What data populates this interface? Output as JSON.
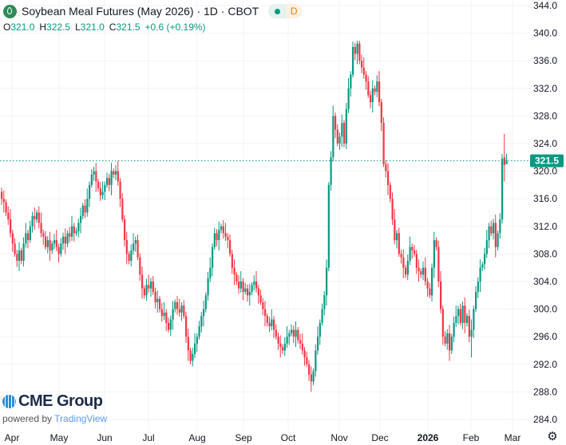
{
  "header": {
    "title": "Soybean Meal Futures (May 2026) · 1D · CBOT",
    "badge_letter": "D",
    "ohlc": {
      "o_label": "O",
      "o": "321.0",
      "h_label": "H",
      "h": "322.5",
      "l_label": "L",
      "l": "321.0",
      "c_label": "C",
      "c": "321.5",
      "change": "+0.6 (+0.19%)"
    }
  },
  "branding": {
    "logo_text": "CME Group",
    "powered_by": "powered by",
    "provider": "TradingView"
  },
  "icons": {
    "symbol": "soybean-leaf-icon",
    "status": "market-open-dot-icon",
    "settings": "gear-icon"
  },
  "colors": {
    "up": "#089981",
    "down": "#f23645",
    "last_price": "#089981",
    "grid": "#f0f3fa"
  },
  "chart_data": {
    "type": "candlestick",
    "title": "Soybean Meal Futures (May 2026) · 1D · CBOT",
    "last_price": "321.5",
    "y_ticks": [
      "344.0",
      "340.0",
      "336.0",
      "332.0",
      "328.0",
      "324.0",
      "320.0",
      "316.0",
      "312.0",
      "308.0",
      "304.0",
      "300.0",
      "296.0",
      "292.0",
      "288.0",
      "284.0"
    ],
    "ylim": [
      284,
      344
    ],
    "x_ticks": [
      "Apr",
      "May",
      "Jun",
      "Jul",
      "Aug",
      "Sep",
      "Oct",
      "Nov",
      "Dec",
      "2026",
      "Feb",
      "Mar"
    ],
    "grid": true,
    "ohlc": [
      [
        317,
        317.6,
        315.1,
        316
      ],
      [
        316,
        317.2,
        314,
        315.5
      ],
      [
        315.5,
        315.9,
        313.5,
        314
      ],
      [
        314,
        314.9,
        312.2,
        313
      ],
      [
        313,
        314.5,
        310.4,
        311
      ],
      [
        311,
        311.5,
        308.3,
        309.5
      ],
      [
        309.5,
        310.3,
        307.6,
        308
      ],
      [
        308,
        308.6,
        306.1,
        307
      ],
      [
        307,
        309.7,
        305.5,
        308.5
      ],
      [
        308.5,
        308.9,
        306.5,
        307
      ],
      [
        307,
        310.4,
        306.2,
        309.5
      ],
      [
        309.5,
        312.5,
        308.9,
        311
      ],
      [
        311,
        311.5,
        308.8,
        310
      ],
      [
        310,
        312.8,
        309.6,
        312
      ],
      [
        312,
        314.1,
        311.1,
        313.5
      ],
      [
        313.5,
        314.7,
        311.5,
        313
      ],
      [
        313,
        314.4,
        312.5,
        314
      ],
      [
        314,
        314.9,
        311.7,
        312.5
      ],
      [
        312.5,
        314,
        310.4,
        311
      ],
      [
        311,
        311.5,
        309.3,
        310.5
      ],
      [
        310.5,
        311.3,
        308.6,
        309
      ],
      [
        309,
        310.6,
        308.1,
        310
      ],
      [
        310,
        311.2,
        307,
        308.5
      ],
      [
        308.5,
        309.9,
        308,
        309.5
      ],
      [
        309.5,
        310.9,
        308.7,
        310
      ],
      [
        310,
        311.5,
        308.4,
        309
      ],
      [
        309,
        309.5,
        306.8,
        308
      ],
      [
        308,
        310.3,
        307.6,
        309.5
      ],
      [
        309.5,
        311.1,
        308.6,
        310.5
      ],
      [
        310.5,
        311.7,
        308,
        309.5
      ],
      [
        309.5,
        311.4,
        309,
        311
      ],
      [
        311,
        311.9,
        309.7,
        310.5
      ],
      [
        310.5,
        313.5,
        309.9,
        312
      ],
      [
        312,
        312.5,
        309.8,
        311
      ],
      [
        311,
        311.8,
        310.6,
        311.3
      ],
      [
        311.3,
        313.1,
        310.4,
        312.5
      ],
      [
        312.5,
        314.7,
        311,
        313.5
      ],
      [
        313.5,
        315.4,
        313,
        315
      ],
      [
        315,
        315.9,
        313.2,
        314
      ],
      [
        314,
        317.5,
        313.4,
        316
      ],
      [
        316,
        318.5,
        314.8,
        318
      ],
      [
        318,
        320.3,
        317.6,
        319.5
      ],
      [
        319.5,
        320.6,
        318.6,
        320
      ],
      [
        320,
        321.2,
        317,
        318.5
      ],
      [
        318.5,
        318.9,
        317,
        317.5
      ],
      [
        317.5,
        318.4,
        315.7,
        316.5
      ],
      [
        316.5,
        318.5,
        315.9,
        317
      ],
      [
        317,
        318.5,
        315.8,
        318
      ],
      [
        318,
        319.8,
        317.6,
        319
      ],
      [
        319,
        319.6,
        317.1,
        318
      ],
      [
        318,
        321.2,
        316.5,
        320
      ],
      [
        320,
        320.4,
        319,
        319.5
      ],
      [
        319.5,
        320.9,
        318.7,
        320
      ],
      [
        320,
        321.5,
        317.9,
        318.5
      ],
      [
        318.5,
        319,
        314.8,
        316
      ],
      [
        316,
        316.8,
        312.6,
        313
      ],
      [
        313,
        313.6,
        309.1,
        310
      ],
      [
        310,
        311.2,
        306.5,
        308
      ],
      [
        308,
        308.4,
        306.5,
        307
      ],
      [
        307,
        309.4,
        306.2,
        308.5
      ],
      [
        308.5,
        311,
        307.9,
        309.5
      ],
      [
        309.5,
        310.5,
        308.3,
        310
      ],
      [
        310,
        310.8,
        307.1,
        307.5
      ],
      [
        307.5,
        308.1,
        304.1,
        305
      ],
      [
        305,
        306.2,
        301.5,
        303
      ],
      [
        303,
        303.4,
        301.5,
        302
      ],
      [
        302,
        304.4,
        301.2,
        303.5
      ],
      [
        303.5,
        305,
        302.4,
        303
      ],
      [
        303,
        304.5,
        301.8,
        304
      ],
      [
        304,
        304.8,
        302.1,
        302.5
      ],
      [
        302.5,
        303.1,
        300.1,
        301
      ],
      [
        301,
        302.7,
        299.5,
        301.5
      ],
      [
        301.5,
        301.9,
        299.5,
        300
      ],
      [
        300,
        300.9,
        298.2,
        299
      ],
      [
        299,
        301,
        298.4,
        299.5
      ],
      [
        299.5,
        300,
        296.8,
        298
      ],
      [
        298,
        298.8,
        296.6,
        297
      ],
      [
        297,
        299.1,
        296.1,
        298.5
      ],
      [
        298.5,
        301.2,
        297,
        300
      ],
      [
        300,
        301.4,
        299.5,
        301
      ],
      [
        301,
        301.9,
        299.2,
        300
      ],
      [
        300,
        301.5,
        298.9,
        299.5
      ],
      [
        299.5,
        301,
        298.3,
        300.5
      ],
      [
        300.5,
        301.3,
        298.6,
        299
      ],
      [
        299,
        299.6,
        295.1,
        296
      ],
      [
        296,
        297.2,
        292.5,
        294
      ],
      [
        294,
        294.4,
        292,
        292.5
      ],
      [
        292.5,
        294.4,
        291.7,
        293.5
      ],
      [
        293.5,
        296.5,
        292.9,
        295
      ],
      [
        295,
        296.5,
        293.8,
        296
      ],
      [
        296,
        298.3,
        295.6,
        297.5
      ],
      [
        297.5,
        299.6,
        296.6,
        299
      ],
      [
        299,
        301.2,
        297.5,
        300
      ],
      [
        300,
        302.4,
        299.5,
        302
      ],
      [
        302,
        305.4,
        301.2,
        304.5
      ],
      [
        304.5,
        307.5,
        303.9,
        306
      ],
      [
        306,
        309.5,
        304.8,
        309
      ],
      [
        309,
        311.8,
        308.6,
        311
      ],
      [
        311,
        311.6,
        309.1,
        310
      ],
      [
        310,
        312.7,
        308.5,
        311.5
      ],
      [
        311.5,
        312.4,
        311,
        312
      ],
      [
        312,
        312.9,
        310.2,
        311
      ],
      [
        311,
        312.5,
        309.9,
        310.5
      ],
      [
        310.5,
        311,
        308.8,
        310
      ],
      [
        310,
        310.8,
        307.6,
        308
      ],
      [
        308,
        308.6,
        305.1,
        306
      ],
      [
        306,
        307.2,
        303.5,
        305
      ],
      [
        305,
        305.4,
        303.5,
        304
      ],
      [
        304,
        304.9,
        302.2,
        303
      ],
      [
        303,
        305.5,
        302.4,
        304
      ],
      [
        304,
        304.5,
        301.3,
        302.5
      ],
      [
        302.5,
        303.8,
        302.1,
        303
      ],
      [
        303,
        303.6,
        301.1,
        302
      ],
      [
        302,
        303.7,
        300.5,
        302.5
      ],
      [
        302.5,
        303.9,
        302,
        303.5
      ],
      [
        303.5,
        304.9,
        302.7,
        304
      ],
      [
        304,
        305.5,
        302.4,
        303
      ],
      [
        303,
        303.5,
        300.8,
        302
      ],
      [
        302,
        302.8,
        300.6,
        301
      ],
      [
        301,
        301.6,
        299.1,
        300
      ],
      [
        300,
        301.2,
        297.5,
        299
      ],
      [
        299,
        299.4,
        297.5,
        298
      ],
      [
        298,
        298.9,
        296.7,
        297.5
      ],
      [
        297.5,
        300,
        296.9,
        298.5
      ],
      [
        298.5,
        299,
        295.8,
        297
      ],
      [
        297,
        297.8,
        295.6,
        296
      ],
      [
        296,
        296.6,
        294.1,
        295
      ],
      [
        295,
        296.2,
        293,
        294.5
      ],
      [
        294.5,
        294.9,
        293.5,
        294
      ],
      [
        294,
        295.9,
        293.2,
        295
      ],
      [
        295,
        297.5,
        294.4,
        296
      ],
      [
        296,
        297,
        294.8,
        296.5
      ],
      [
        296.5,
        297.8,
        296.1,
        297
      ],
      [
        297,
        297.6,
        295.1,
        296
      ],
      [
        296,
        298.2,
        294.5,
        297
      ],
      [
        297,
        297.4,
        295,
        295.5
      ],
      [
        295.5,
        296.4,
        294.2,
        295
      ],
      [
        295,
        296.5,
        293.4,
        294
      ],
      [
        294,
        294.5,
        291.8,
        293
      ],
      [
        293,
        293.8,
        291.6,
        292
      ],
      [
        292,
        292.6,
        289.6,
        290.5
      ],
      [
        290.5,
        291.7,
        288,
        289.5
      ],
      [
        289.5,
        291.4,
        289,
        291
      ],
      [
        291,
        294.9,
        290.2,
        294
      ],
      [
        294,
        297.5,
        293.4,
        296
      ],
      [
        296,
        298.5,
        294.8,
        298
      ],
      [
        298,
        300.8,
        297.6,
        300
      ],
      [
        300,
        302.6,
        299.1,
        302
      ],
      [
        302,
        307.2,
        300.5,
        306
      ],
      [
        306,
        318.4,
        305.5,
        318
      ],
      [
        318,
        322.9,
        317.2,
        322
      ],
      [
        322,
        329.5,
        321.4,
        328
      ],
      [
        328,
        328.5,
        324.8,
        326
      ],
      [
        326,
        326.8,
        323.6,
        324
      ],
      [
        324,
        325.6,
        323.1,
        325
      ],
      [
        325,
        328.2,
        323.5,
        327
      ],
      [
        327,
        327.4,
        323.5,
        324
      ],
      [
        324,
        329.9,
        323.2,
        329
      ],
      [
        329,
        333.5,
        328.4,
        332
      ],
      [
        332,
        334.5,
        330.8,
        334
      ],
      [
        334,
        338.8,
        333.6,
        338
      ],
      [
        338,
        338.6,
        336.1,
        337
      ],
      [
        337,
        338.9,
        335.5,
        338.5
      ],
      [
        338.5,
        338.9,
        335.5,
        336
      ],
      [
        336,
        336.9,
        334.2,
        335
      ],
      [
        335,
        336.5,
        333.4,
        334
      ],
      [
        334,
        334.5,
        331.8,
        333
      ],
      [
        333,
        333.8,
        330.6,
        331
      ],
      [
        331,
        331.6,
        329.1,
        330
      ],
      [
        330,
        333.2,
        328.5,
        332
      ],
      [
        332,
        332.4,
        331,
        331.5
      ],
      [
        331.5,
        333.9,
        330.7,
        333
      ],
      [
        333,
        334.5,
        329.4,
        330
      ],
      [
        330,
        330.5,
        325.8,
        327
      ],
      [
        327,
        327.8,
        320.6,
        321
      ],
      [
        321,
        321.6,
        319.1,
        320
      ],
      [
        320,
        321.2,
        316.5,
        318
      ],
      [
        318,
        318.4,
        315.5,
        316
      ],
      [
        316,
        316.9,
        312.2,
        313
      ],
      [
        313,
        314.5,
        309.4,
        310
      ],
      [
        310,
        311.5,
        308.8,
        311
      ],
      [
        311,
        311.8,
        307.6,
        308
      ],
      [
        308,
        308.6,
        306.6,
        307.5
      ],
      [
        307.5,
        308.7,
        304.5,
        306
      ],
      [
        306,
        306.4,
        304.5,
        305
      ],
      [
        305,
        307.9,
        304.2,
        307
      ],
      [
        307,
        310.5,
        306.4,
        309
      ],
      [
        309,
        309.5,
        307.3,
        308.5
      ],
      [
        308.5,
        309.3,
        307.6,
        308
      ],
      [
        308,
        308.6,
        305.1,
        306
      ],
      [
        306,
        307.2,
        304,
        305.5
      ],
      [
        305.5,
        305.9,
        304.5,
        305
      ],
      [
        305,
        306.9,
        304.2,
        306
      ],
      [
        306,
        307.5,
        303.4,
        304
      ],
      [
        304,
        304.5,
        301.8,
        303
      ],
      [
        303,
        303.8,
        301.6,
        302
      ],
      [
        302,
        306.6,
        301.1,
        306
      ],
      [
        306,
        311.2,
        304.5,
        310
      ],
      [
        310,
        310.4,
        308.5,
        309
      ],
      [
        309,
        309.9,
        303.2,
        304
      ],
      [
        304,
        305.5,
        299.4,
        300
      ],
      [
        300,
        300.5,
        294.8,
        296
      ],
      [
        296,
        296.8,
        294.6,
        295
      ],
      [
        295,
        297.1,
        294.1,
        296.5
      ],
      [
        296.5,
        297.7,
        292.5,
        294
      ],
      [
        294,
        296.4,
        293.5,
        296
      ],
      [
        296,
        298.9,
        295.2,
        298
      ],
      [
        298,
        300.5,
        297.4,
        299
      ],
      [
        299,
        300.5,
        297.8,
        300
      ],
      [
        300,
        300.8,
        297.6,
        298
      ],
      [
        298,
        301.1,
        297.1,
        300.5
      ],
      [
        300.5,
        301.7,
        296.5,
        298
      ],
      [
        298,
        299.4,
        297.5,
        299
      ],
      [
        299,
        299.9,
        295.2,
        296
      ],
      [
        296,
        298.5,
        293,
        297
      ],
      [
        297,
        300.5,
        295.8,
        300
      ],
      [
        300,
        303.3,
        299.6,
        302.5
      ],
      [
        302.5,
        304.6,
        301.6,
        304
      ],
      [
        304,
        307.2,
        302.5,
        306
      ],
      [
        306,
        306.9,
        305.5,
        306.5
      ],
      [
        306.5,
        308.9,
        305.7,
        308
      ],
      [
        308,
        311.5,
        307.4,
        310
      ],
      [
        310,
        312.5,
        308.8,
        312
      ],
      [
        312,
        312.8,
        310.6,
        311
      ],
      [
        311,
        313.1,
        310.1,
        312.5
      ],
      [
        312.5,
        313.7,
        307.5,
        309
      ],
      [
        309,
        311.4,
        308.5,
        311
      ],
      [
        311,
        313.9,
        310.2,
        313
      ],
      [
        313,
        322.5,
        312.4,
        321.8
      ],
      [
        322,
        325.4,
        318.5,
        320.9
      ],
      [
        321,
        322.5,
        321,
        321.5
      ]
    ]
  }
}
